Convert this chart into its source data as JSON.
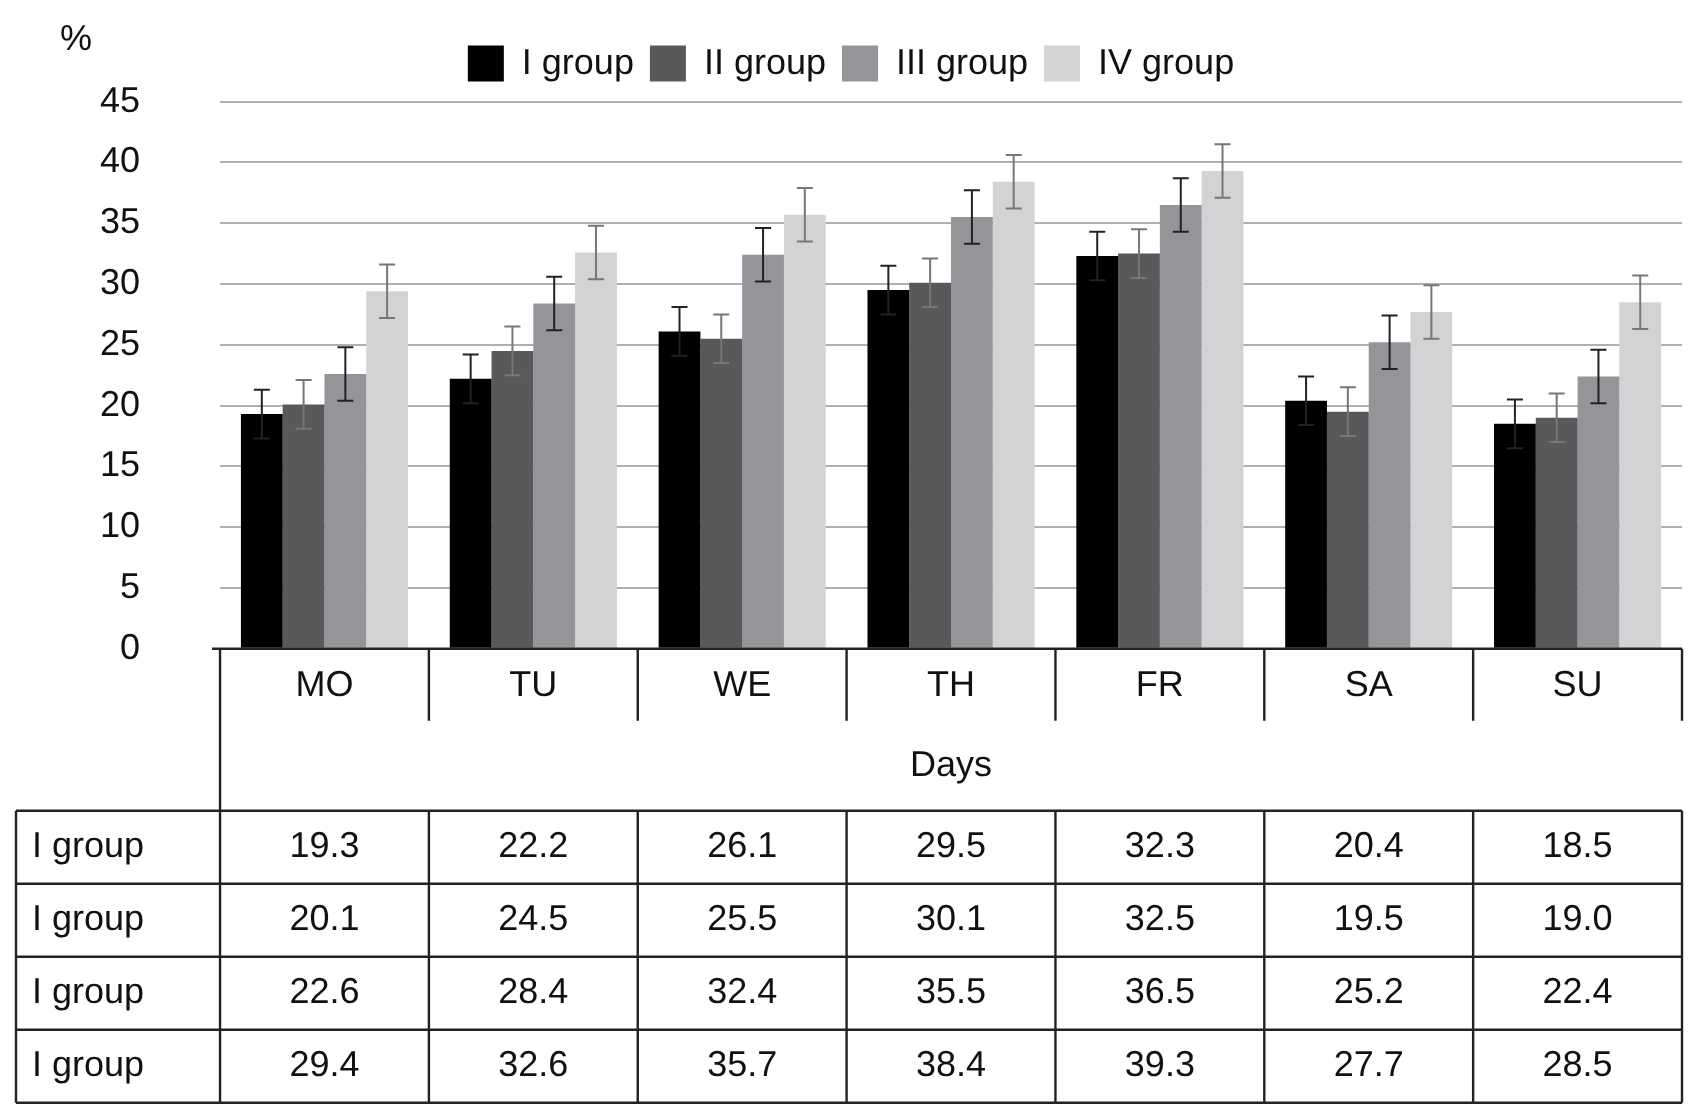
{
  "chart_data": {
    "type": "bar",
    "ylabel": "%",
    "xlabel": "Days",
    "categories": [
      "MO",
      "TU",
      "WE",
      "TH",
      "FR",
      "SA",
      "SU"
    ],
    "series": [
      {
        "name": "I group",
        "color": "#000000",
        "values": [
          19.3,
          22.2,
          26.1,
          29.5,
          32.3,
          20.4,
          18.5
        ],
        "errors": [
          2,
          2,
          2,
          2,
          2,
          2,
          2
        ]
      },
      {
        "name": "II group",
        "color": "#58595b",
        "values": [
          20.1,
          24.5,
          25.5,
          30.1,
          32.5,
          19.5,
          19.0
        ],
        "errors": [
          2,
          2,
          2,
          2,
          2,
          2,
          2
        ],
        "value_labels": [
          "20.1",
          "24.5",
          "25.5",
          "30.1",
          "32.5",
          "19.5",
          "19.0"
        ]
      },
      {
        "name": "III group",
        "color": "#939598",
        "values": [
          22.6,
          28.4,
          32.4,
          35.5,
          36.5,
          25.2,
          22.4
        ],
        "errors": [
          2.2,
          2.2,
          2.2,
          2.2,
          2.2,
          2.2,
          2.2
        ]
      },
      {
        "name": "IV group",
        "color": "#d1d3d4",
        "values": [
          29.4,
          32.6,
          35.7,
          38.4,
          39.3,
          27.7,
          28.5
        ],
        "errors": [
          2.2,
          2.2,
          2.2,
          2.2,
          2.2,
          2.2,
          2.2
        ]
      }
    ],
    "annotations": [
      "I group",
      "I group",
      "I group",
      "I group"
    ],
    "ylim": [
      0,
      45
    ],
    "yticks": [
      0,
      5,
      10,
      15,
      20,
      25,
      30,
      35,
      40,
      45
    ],
    "grid": "y",
    "legend": "top",
    "data_labels": true
  }
}
